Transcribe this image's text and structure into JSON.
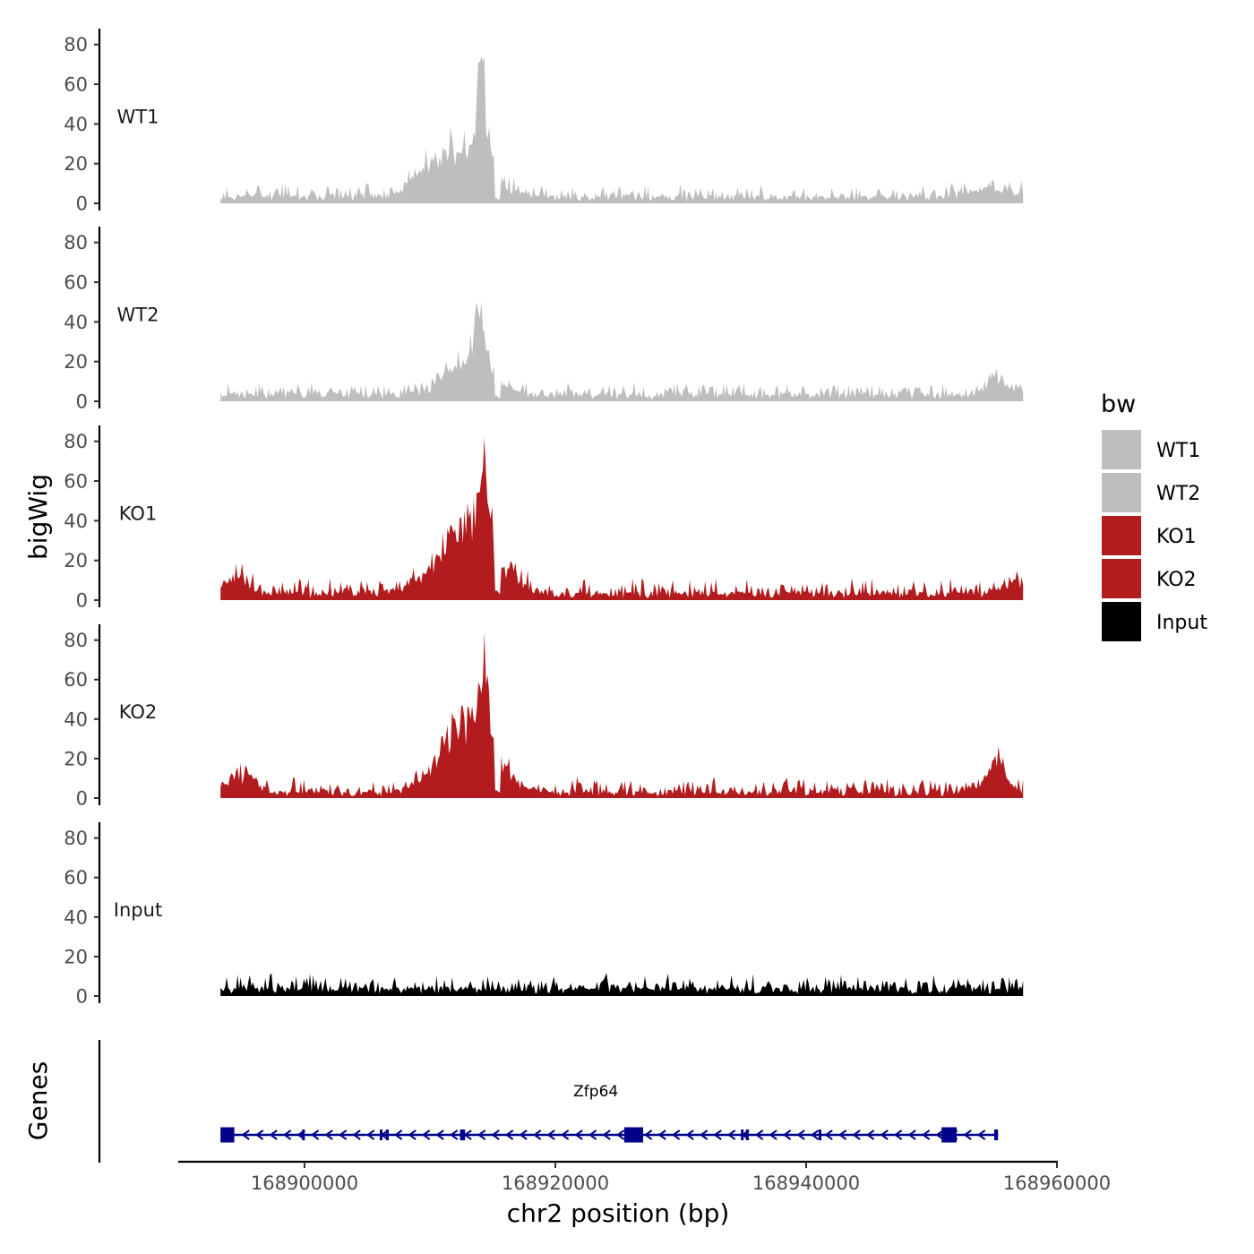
{
  "chart_data": {
    "type": "area",
    "title": "",
    "xlabel": "chr2 position (bp)",
    "ylabel": "bigWig",
    "genes_label": "Genes",
    "xlim": [
      168890000,
      168960000
    ],
    "region": [
      168893300,
      168957300
    ],
    "ylim": [
      0,
      88
    ],
    "y_ticks": [
      0,
      20,
      40,
      60,
      80
    ],
    "x_ticks": [
      168900000,
      168920000,
      168940000,
      168960000
    ],
    "x_tick_labels": [
      "168900000",
      "168920000",
      "168940000",
      "168960000"
    ],
    "legend": {
      "title": "bw",
      "position": "right",
      "items": [
        {
          "label": "WT1",
          "color": "#bebebe"
        },
        {
          "label": "WT2",
          "color": "#bebebe"
        },
        {
          "label": "KO1",
          "color": "#b21c1e"
        },
        {
          "label": "KO2",
          "color": "#b21c1e"
        },
        {
          "label": "Input",
          "color": "#000000"
        }
      ]
    },
    "series": [
      {
        "name": "WT1",
        "color": "#bebebe",
        "baseline": 4,
        "noise": 3,
        "peaks": [
          {
            "pos": 168912500,
            "height": 30,
            "width": 2200
          },
          {
            "pos": 168914200,
            "height": 28,
            "width": 500
          },
          {
            "pos": 168914000,
            "height": 42,
            "width": 180
          },
          {
            "pos": 168909000,
            "height": 6,
            "width": 900
          },
          {
            "pos": 168955000,
            "height": 4,
            "width": 2000
          }
        ],
        "max": 74
      },
      {
        "name": "WT2",
        "color": "#bebebe",
        "baseline": 4,
        "noise": 3,
        "peaks": [
          {
            "pos": 168913200,
            "height": 22,
            "width": 1800
          },
          {
            "pos": 168914100,
            "height": 20,
            "width": 450
          },
          {
            "pos": 168913700,
            "height": 16,
            "width": 160
          },
          {
            "pos": 168955000,
            "height": 8,
            "width": 900
          }
        ],
        "max": 50
      },
      {
        "name": "KO1",
        "color": "#b21c1e",
        "baseline": 4,
        "noise": 3.5,
        "peaks": [
          {
            "pos": 168913000,
            "height": 38,
            "width": 2300
          },
          {
            "pos": 168914300,
            "height": 30,
            "width": 550
          },
          {
            "pos": 168914400,
            "height": 22,
            "width": 150
          },
          {
            "pos": 168894500,
            "height": 10,
            "width": 900
          },
          {
            "pos": 168956500,
            "height": 6,
            "width": 1100
          }
        ],
        "max": 82
      },
      {
        "name": "KO2",
        "color": "#b21c1e",
        "baseline": 3.5,
        "noise": 3.5,
        "peaks": [
          {
            "pos": 168913000,
            "height": 40,
            "width": 2100
          },
          {
            "pos": 168914200,
            "height": 28,
            "width": 500
          },
          {
            "pos": 168914300,
            "height": 24,
            "width": 140
          },
          {
            "pos": 168895000,
            "height": 10,
            "width": 1000
          },
          {
            "pos": 168955200,
            "height": 14,
            "width": 500
          },
          {
            "pos": 168955200,
            "height": 6,
            "width": 1400
          }
        ],
        "max": 84
      },
      {
        "name": "Input",
        "color": "#000000",
        "baseline": 4.5,
        "noise": 3.5,
        "peaks": [],
        "max": 15
      }
    ],
    "gene_track": {
      "gene_name": "Zfp64",
      "strand": "-",
      "color": "#00008b",
      "start": 168893300,
      "end": 168955300,
      "exons": [
        {
          "start": 168893300,
          "end": 168894400,
          "thick": true
        },
        {
          "start": 168899800,
          "end": 168900000,
          "thick": false
        },
        {
          "start": 168906000,
          "end": 168906100,
          "thick": false
        },
        {
          "start": 168906500,
          "end": 168906700,
          "thick": false
        },
        {
          "start": 168912400,
          "end": 168912800,
          "thick": false
        },
        {
          "start": 168925500,
          "end": 168927000,
          "thick": true
        },
        {
          "start": 168934800,
          "end": 168935000,
          "thick": false
        },
        {
          "start": 168935200,
          "end": 168935400,
          "thick": false
        },
        {
          "start": 168941000,
          "end": 168941200,
          "thick": false
        },
        {
          "start": 168950800,
          "end": 168952000,
          "thick": true
        },
        {
          "start": 168955000,
          "end": 168955300,
          "thick": false
        }
      ]
    }
  }
}
